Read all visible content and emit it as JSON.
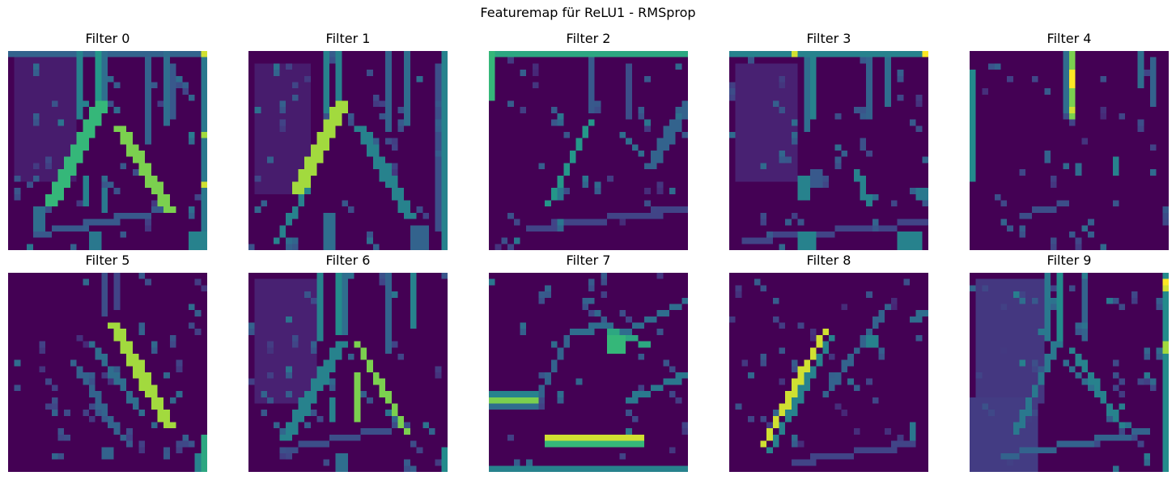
{
  "figure": {
    "title": "Featuremap für ReLU1 - RMSprop",
    "colormap": "viridis",
    "axes_visible": false
  },
  "panels": [
    {
      "title": "Filter 0",
      "content": "feature-map-image"
    },
    {
      "title": "Filter 1",
      "content": "feature-map-image"
    },
    {
      "title": "Filter 2",
      "content": "feature-map-image"
    },
    {
      "title": "Filter 3",
      "content": "feature-map-image"
    },
    {
      "title": "Filter 4",
      "content": "feature-map-image"
    },
    {
      "title": "Filter 5",
      "content": "feature-map-image"
    },
    {
      "title": "Filter 6",
      "content": "feature-map-image"
    },
    {
      "title": "Filter 7",
      "content": "feature-map-image"
    },
    {
      "title": "Filter 8",
      "content": "feature-map-image"
    },
    {
      "title": "Filter 9",
      "content": "feature-map-image"
    }
  ]
}
